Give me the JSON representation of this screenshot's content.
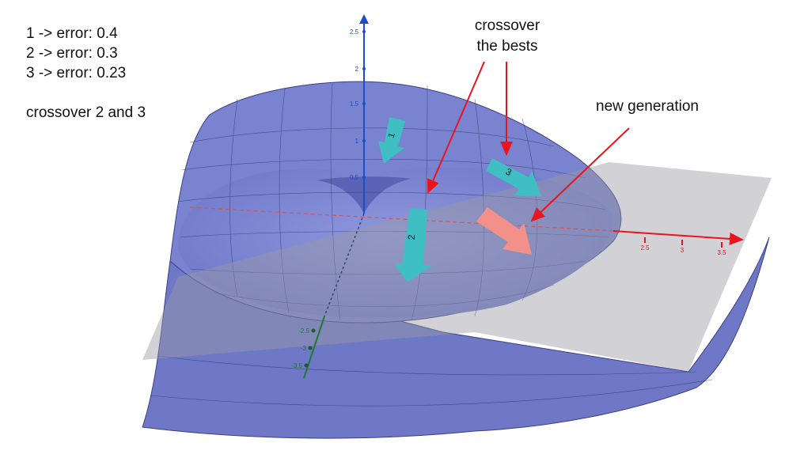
{
  "notes": [
    "1 -> error: 0.4",
    "2 -> error: 0.3",
    "3 -> error: 0.23",
    "crossover 2 and 3"
  ],
  "annotations": {
    "crossover_bests": [
      "crossover",
      "the bests"
    ],
    "new_generation": "new generation"
  },
  "arrows": [
    {
      "label": "1"
    },
    {
      "label": "2"
    },
    {
      "label": "3"
    }
  ],
  "axes": {
    "z_ticks": [
      "2.5",
      "2",
      "1.5",
      "1",
      "0.5"
    ],
    "x_ticks": [
      "2.5",
      "3",
      "3.5"
    ],
    "y_ticks": [
      "-2.5",
      "-3",
      "-3.5"
    ]
  }
}
